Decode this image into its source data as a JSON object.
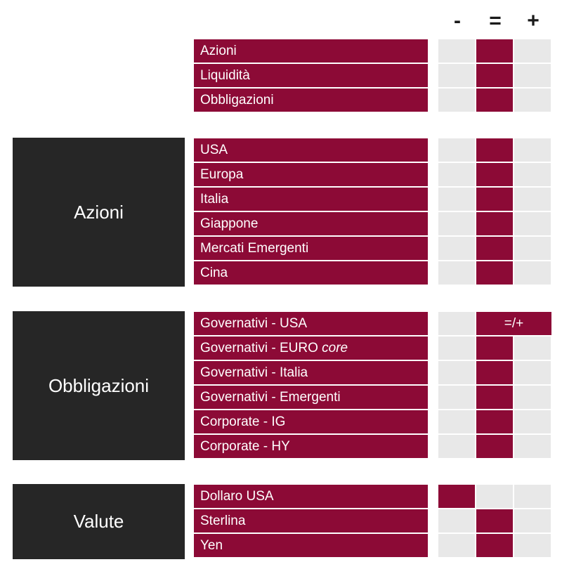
{
  "columns": {
    "minus": "-",
    "equal": "=",
    "plus": "+"
  },
  "groups": [
    {
      "label": ""
    },
    {
      "label": "Azioni"
    },
    {
      "label": "Obbligazioni"
    },
    {
      "label": "Valute"
    }
  ],
  "rows": [
    {
      "label": "Azioni",
      "position": "="
    },
    {
      "label": "Liquidità",
      "position": "="
    },
    {
      "label": "Obbligazioni",
      "position": "="
    },
    {
      "label": "USA",
      "position": "="
    },
    {
      "label": "Europa",
      "position": "="
    },
    {
      "label": "Italia",
      "position": "="
    },
    {
      "label": "Giappone",
      "position": "="
    },
    {
      "label": "Mercati Emergenti",
      "position": "="
    },
    {
      "label": "Cina",
      "position": "="
    },
    {
      "label": "Governativi - USA",
      "position": "=/+"
    },
    {
      "label_main": "Governativi - EURO ",
      "label_italic": "core",
      "position": "="
    },
    {
      "label": "Governativi - Italia",
      "position": "="
    },
    {
      "label": "Governativi - Emergenti",
      "position": "="
    },
    {
      "label": "Corporate - IG",
      "position": "="
    },
    {
      "label": "Corporate - HY",
      "position": "="
    },
    {
      "label": "Dollaro USA",
      "position": "-"
    },
    {
      "label": "Sterlina",
      "position": "="
    },
    {
      "label": "Yen",
      "position": "="
    }
  ],
  "colors": {
    "accent": "#8c0a36",
    "dark": "#262626",
    "cell_empty": "#e8e8e8"
  }
}
